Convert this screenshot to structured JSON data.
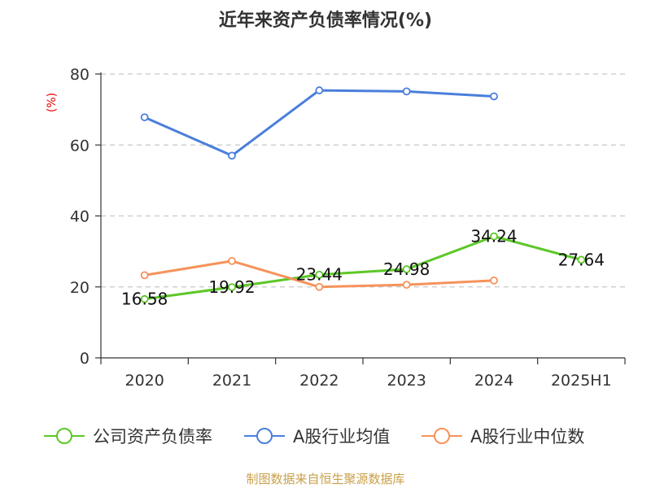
{
  "chart_data": {
    "type": "line",
    "title": "近年来资产负债率情况(%)",
    "ylabel": "(%)",
    "xlabel": "",
    "categories": [
      "2020",
      "2021",
      "2022",
      "2023",
      "2024",
      "2025H1"
    ],
    "ylim": [
      0,
      80
    ],
    "yticks": [
      0,
      20,
      40,
      60,
      80
    ],
    "grid": true,
    "legend_position": "bottom",
    "series": [
      {
        "name": "公司资产负债率",
        "color": "#5cc728",
        "values": [
          16.58,
          19.92,
          23.44,
          24.98,
          34.24,
          27.64
        ],
        "labels": [
          "16.58",
          "19.92",
          "23.44",
          "24.98",
          "34.24",
          "27.64"
        ]
      },
      {
        "name": "A股行业均值",
        "color": "#4a7fdc",
        "values": [
          67.8,
          57.0,
          75.4,
          75.1,
          73.7,
          null
        ]
      },
      {
        "name": "A股行业中位数",
        "color": "#f5935b",
        "values": [
          23.3,
          27.3,
          20.0,
          20.6,
          21.8,
          null
        ]
      }
    ]
  },
  "source": "制图数据来自恒生聚源数据库"
}
